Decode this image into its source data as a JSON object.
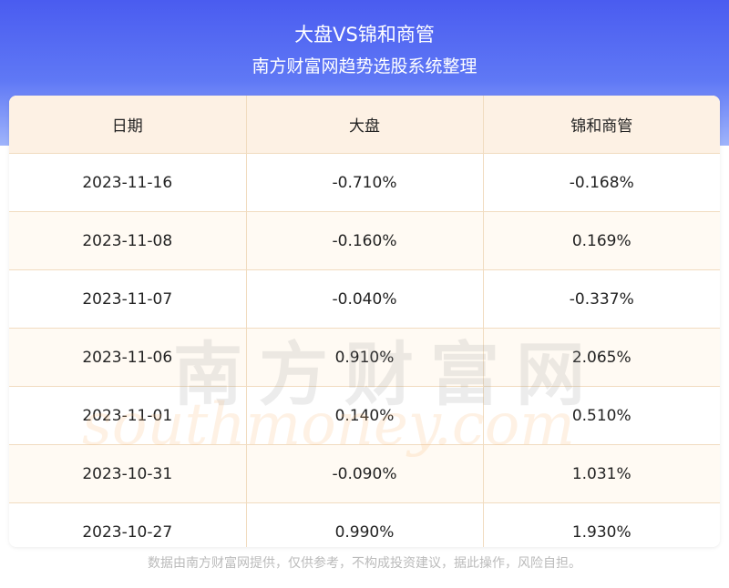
{
  "header": {
    "title": "大盘VS锦和商管",
    "subtitle": "南方财富网趋势选股系统整理"
  },
  "table": {
    "columns": [
      "日期",
      "大盘",
      "锦和商管"
    ],
    "rows": [
      [
        "2023-11-16",
        "-0.710%",
        "-0.168%"
      ],
      [
        "2023-11-08",
        "-0.160%",
        "0.169%"
      ],
      [
        "2023-11-07",
        "-0.040%",
        "-0.337%"
      ],
      [
        "2023-11-06",
        "0.910%",
        "2.065%"
      ],
      [
        "2023-11-01",
        "0.140%",
        "0.510%"
      ],
      [
        "2023-10-31",
        "-0.090%",
        "1.031%"
      ],
      [
        "2023-10-27",
        "0.990%",
        "1.930%"
      ]
    ]
  },
  "watermark": {
    "cn": "南方财富网",
    "en": "southmoney.com"
  },
  "footer": "数据由南方财富网提供，仅供参考，不构成投资建议，据此操作，风险自担。"
}
